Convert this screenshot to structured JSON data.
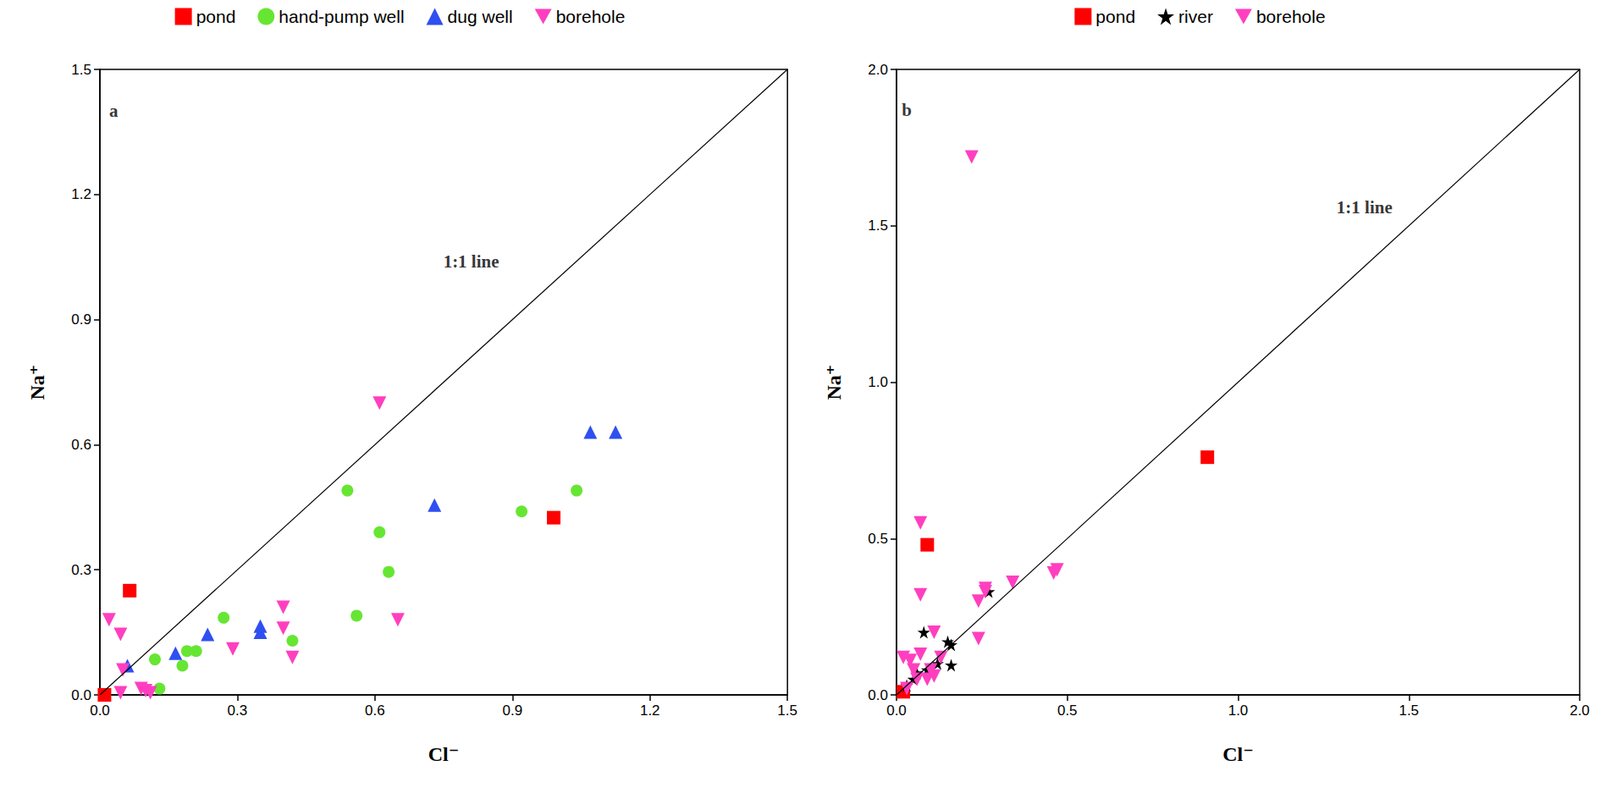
{
  "chart_data": [
    {
      "type": "scatter",
      "x_label": "Cl⁻",
      "y_label": "Na⁺",
      "xlim": [
        0,
        1.5
      ],
      "ylim": [
        0,
        1.5
      ],
      "xticks": [
        {
          "value": 0,
          "label": "0.0"
        },
        0.3,
        0.6,
        0.9,
        1.2,
        1.5
      ],
      "yticks": [
        {
          "value": 0,
          "label": "0.0"
        },
        0.3,
        0.6,
        0.9,
        1.2,
        1.5
      ],
      "grid": false,
      "legend": "top",
      "reference_lines": [
        {
          "x": [
            0,
            1.5
          ],
          "y": [
            0,
            1.5
          ]
        }
      ],
      "annotations": [
        {
          "text": "1:1 line",
          "x": 0.81,
          "y": 1.04
        },
        {
          "text": "a",
          "x": 0.03,
          "y": 1.4
        }
      ],
      "series": [
        {
          "name": "pond",
          "color": "#ff0000",
          "marker": "square",
          "x": [
            0.065,
            0.99,
            0.01
          ],
          "values": [
            0.25,
            0.425,
            0.0
          ]
        },
        {
          "name": "hand-pump well",
          "color": "#66e633",
          "marker": "circle",
          "x": [
            0.12,
            0.13,
            0.18,
            0.19,
            0.21,
            0.27,
            0.42,
            0.54,
            0.56,
            0.61,
            0.63,
            0.92,
            1.04
          ],
          "values": [
            0.085,
            0.015,
            0.07,
            0.105,
            0.105,
            0.185,
            0.13,
            0.49,
            0.19,
            0.39,
            0.295,
            0.44,
            0.49
          ]
        },
        {
          "name": "dug well",
          "color": "#2f4ff0",
          "marker": "triangle",
          "x": [
            0.06,
            0.165,
            0.235,
            0.35,
            0.35,
            0.73,
            1.07,
            1.125
          ],
          "values": [
            0.07,
            0.1,
            0.145,
            0.165,
            0.15,
            0.455,
            0.63,
            0.63
          ]
        },
        {
          "name": "borehole",
          "color": "#ff3fbf",
          "marker": "triangle-down",
          "x": [
            0.02,
            0.045,
            0.05,
            0.045,
            0.09,
            0.1,
            0.11,
            0.29,
            0.4,
            0.4,
            0.42,
            0.61,
            0.65
          ],
          "values": [
            0.18,
            0.145,
            0.06,
            0.005,
            0.015,
            0.01,
            0.005,
            0.11,
            0.21,
            0.16,
            0.09,
            0.7,
            0.18
          ]
        }
      ]
    },
    {
      "type": "scatter",
      "x_label": "Cl⁻",
      "y_label": "Na⁺",
      "xlim": [
        0,
        2.0
      ],
      "ylim": [
        0,
        2.0
      ],
      "xticks": [
        {
          "value": 0,
          "label": "0.0"
        },
        0.5,
        {
          "value": 1,
          "label": "1.0"
        },
        1.5,
        {
          "value": 2,
          "label": "2.0"
        }
      ],
      "yticks": [
        {
          "value": 0,
          "label": "0.0"
        },
        0.5,
        {
          "value": 1,
          "label": "1.0"
        },
        1.5,
        {
          "value": 2,
          "label": "2.0"
        }
      ],
      "grid": false,
      "legend": "top",
      "reference_lines": [
        {
          "x": [
            0,
            2.0
          ],
          "y": [
            0,
            2.0
          ]
        }
      ],
      "annotations": [
        {
          "text": "1:1 line",
          "x": 1.37,
          "y": 1.56
        },
        {
          "text": "b",
          "x": 0.03,
          "y": 1.87
        }
      ],
      "series": [
        {
          "name": "pond",
          "color": "#ff0000",
          "marker": "square",
          "x": [
            0.02,
            0.09,
            0.91
          ],
          "values": [
            0.01,
            0.48,
            0.76
          ]
        },
        {
          "name": "river",
          "color": "#000000",
          "marker": "star",
          "x": [
            0.03,
            0.05,
            0.06,
            0.08,
            0.09,
            0.12,
            0.15,
            0.16,
            0.16,
            0.27
          ],
          "values": [
            0.03,
            0.05,
            0.07,
            0.2,
            0.08,
            0.1,
            0.17,
            0.16,
            0.095,
            0.33
          ]
        },
        {
          "name": "borehole",
          "color": "#ff3fbf",
          "marker": "triangle-down",
          "x": [
            0.22,
            0.07,
            0.07,
            0.02,
            0.04,
            0.05,
            0.06,
            0.07,
            0.09,
            0.1,
            0.11,
            0.11,
            0.13,
            0.24,
            0.24,
            0.26,
            0.26,
            0.34,
            0.46,
            0.47,
            0.03
          ],
          "values": [
            1.72,
            0.55,
            0.32,
            0.12,
            0.11,
            0.08,
            0.05,
            0.13,
            0.05,
            0.08,
            0.2,
            0.06,
            0.12,
            0.3,
            0.18,
            0.34,
            0.33,
            0.36,
            0.39,
            0.4,
            0.02
          ]
        }
      ]
    }
  ]
}
